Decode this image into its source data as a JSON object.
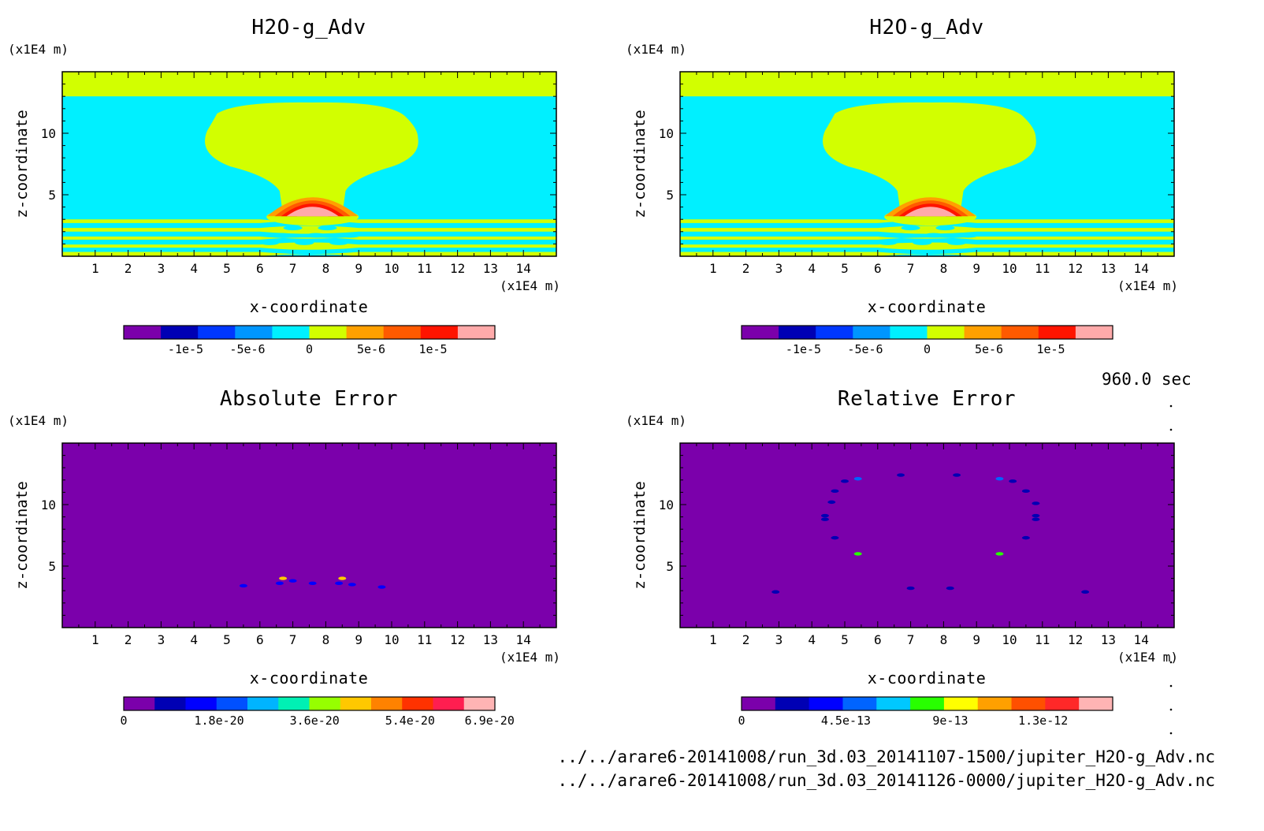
{
  "time_label": "960.0 sec",
  "file_paths": [
    "../../arare6-20141008/run_3d.03_20141107-1500/jupiter_H2O-g_Adv.nc",
    "../../arare6-20141008/run_3d.03_20141126-0000/jupiter_H2O-g_Adv.nc"
  ],
  "colors": {
    "field": [
      "#7b00ab",
      "#0000b4",
      "#0037ff",
      "#0096ff",
      "#00f0ff",
      "#d2ff00",
      "#ffa000",
      "#ff5a00",
      "#ff1400",
      "#ffaaaa"
    ],
    "absolute_error": [
      "#7b00ab",
      "#0000b4",
      "#0000ff",
      "#0050ff",
      "#00b4ff",
      "#00f0b4",
      "#96ff00",
      "#ffc800",
      "#ff8200",
      "#ff3200",
      "#ff1e50",
      "#ffb4b4"
    ],
    "relative_error": [
      "#7b00ab",
      "#0000b4",
      "#0000ff",
      "#0064ff",
      "#00c8ff",
      "#28ff00",
      "#ffff00",
      "#ffa000",
      "#ff5000",
      "#ff2828",
      "#ffb4b4"
    ]
  },
  "chart_data": [
    {
      "type": "heatmap",
      "panel": "top-left",
      "title": "H2O-g_Adv",
      "xlabel": "x-coordinate",
      "ylabel": "z-coordinate",
      "x_unit": "(x1E4 m)",
      "y_unit": "(x1E4 m)",
      "xlim": [
        0,
        15
      ],
      "ylim": [
        0,
        15
      ],
      "xticks": [
        "1",
        "2",
        "3",
        "4",
        "5",
        "6",
        "7",
        "8",
        "9",
        "10",
        "11",
        "12",
        "13",
        "14"
      ],
      "yticks": [
        "5",
        "10"
      ],
      "colorbar_ticks": [
        "-1e-5",
        "-5e-6",
        "0",
        "5e-6",
        "1e-5"
      ],
      "colorbar_range": [
        -1.5e-05,
        1.5e-05
      ],
      "regions": [
        {
          "value": 2.5e-06,
          "note": "upper layer z > 13"
        },
        {
          "value": -2.5e-06,
          "note": "background z 3 to 13"
        },
        {
          "value": 2.5e-06,
          "note": "mushroom plume centred x = 7.5"
        },
        {
          "value": 1.25e-05,
          "note": "plume base peak at x = 7.5, z = 3.5"
        },
        {
          "value": 2.5e-06,
          "note": "alternating bands z < 3"
        }
      ]
    },
    {
      "type": "heatmap",
      "panel": "top-right",
      "title": "H2O-g_Adv",
      "xlabel": "x-coordinate",
      "ylabel": "z-coordinate",
      "x_unit": "(x1E4 m)",
      "y_unit": "(x1E4 m)",
      "xlim": [
        0,
        15
      ],
      "ylim": [
        0,
        15
      ],
      "xticks": [
        "1",
        "2",
        "3",
        "4",
        "5",
        "6",
        "7",
        "8",
        "9",
        "10",
        "11",
        "12",
        "13",
        "14"
      ],
      "yticks": [
        "5",
        "10"
      ],
      "colorbar_ticks": [
        "-1e-5",
        "-5e-6",
        "0",
        "5e-6",
        "1e-5"
      ],
      "colorbar_range": [
        -1.5e-05,
        1.5e-05
      ]
    },
    {
      "type": "heatmap",
      "panel": "bottom-left",
      "title": "Absolute Error",
      "xlabel": "x-coordinate",
      "ylabel": "z-coordinate",
      "x_unit": "(x1E4 m)",
      "y_unit": "(x1E4 m)",
      "xlim": [
        0,
        15
      ],
      "ylim": [
        0,
        15
      ],
      "xticks": [
        "1",
        "2",
        "3",
        "4",
        "5",
        "6",
        "7",
        "8",
        "9",
        "10",
        "11",
        "12",
        "13",
        "14"
      ],
      "yticks": [
        "5",
        "10"
      ],
      "colorbar_ticks": [
        "0",
        "1.8e-20",
        "3.6e-20",
        "5.4e-20",
        "6.9e-20"
      ],
      "colorbar_range": [
        0,
        7e-20
      ],
      "background_value": 0,
      "spots": [
        {
          "x": 5.5,
          "z": 3.4,
          "value": 1.2e-20
        },
        {
          "x": 6.7,
          "z": 4.0,
          "value": 4.5e-20
        },
        {
          "x": 6.6,
          "z": 3.6,
          "value": 1.2e-20
        },
        {
          "x": 7.0,
          "z": 3.8,
          "value": 1.2e-20
        },
        {
          "x": 7.6,
          "z": 3.6,
          "value": 1.2e-20
        },
        {
          "x": 8.5,
          "z": 4.0,
          "value": 4.5e-20
        },
        {
          "x": 8.4,
          "z": 3.6,
          "value": 1.2e-20
        },
        {
          "x": 8.8,
          "z": 3.5,
          "value": 1.2e-20
        },
        {
          "x": 9.7,
          "z": 3.3,
          "value": 1.2e-20
        }
      ]
    },
    {
      "type": "heatmap",
      "panel": "bottom-right",
      "title": "Relative Error",
      "xlabel": "x-coordinate",
      "ylabel": "z-coordinate",
      "x_unit": "(x1E4 m)",
      "y_unit": "(x1E4 m)",
      "xlim": [
        0,
        15
      ],
      "ylim": [
        0,
        15
      ],
      "xticks": [
        "1",
        "2",
        "3",
        "4",
        "5",
        "6",
        "7",
        "8",
        "9",
        "10",
        "11",
        "12",
        "13",
        "14"
      ],
      "yticks": [
        "5",
        "10"
      ],
      "colorbar_ticks": [
        "0",
        "4.5e-13",
        "9e-13",
        "1.3e-12"
      ],
      "colorbar_range": [
        0,
        1.6e-12
      ],
      "background_value": 0,
      "spots": [
        {
          "x": 6.7,
          "z": 12.4,
          "value": 2.5e-13
        },
        {
          "x": 8.4,
          "z": 12.4,
          "value": 2.5e-13
        },
        {
          "x": 5.4,
          "z": 12.1,
          "value": 4.5e-13
        },
        {
          "x": 9.7,
          "z": 12.1,
          "value": 4.5e-13
        },
        {
          "x": 5.0,
          "z": 11.9,
          "value": 2.5e-13
        },
        {
          "x": 10.1,
          "z": 11.9,
          "value": 2.5e-13
        },
        {
          "x": 4.7,
          "z": 11.1,
          "value": 2.5e-13
        },
        {
          "x": 10.5,
          "z": 11.1,
          "value": 2.5e-13
        },
        {
          "x": 4.6,
          "z": 10.2,
          "value": 2.5e-13
        },
        {
          "x": 10.8,
          "z": 10.1,
          "value": 2.5e-13
        },
        {
          "x": 4.4,
          "z": 9.1,
          "value": 2.5e-13
        },
        {
          "x": 10.8,
          "z": 9.1,
          "value": 2.5e-13
        },
        {
          "x": 4.4,
          "z": 8.8,
          "value": 2.5e-13
        },
        {
          "x": 10.8,
          "z": 8.8,
          "value": 2.5e-13
        },
        {
          "x": 4.7,
          "z": 7.3,
          "value": 2.5e-13
        },
        {
          "x": 10.5,
          "z": 7.3,
          "value": 2.5e-13
        },
        {
          "x": 5.4,
          "z": 6.0,
          "value": 8e-13
        },
        {
          "x": 9.7,
          "z": 6.0,
          "value": 8e-13
        },
        {
          "x": 2.9,
          "z": 2.9,
          "value": 2.5e-13
        },
        {
          "x": 7.0,
          "z": 3.2,
          "value": 2.5e-13
        },
        {
          "x": 8.2,
          "z": 3.2,
          "value": 2.5e-13
        },
        {
          "x": 12.3,
          "z": 2.9,
          "value": 2.5e-13
        }
      ]
    }
  ]
}
